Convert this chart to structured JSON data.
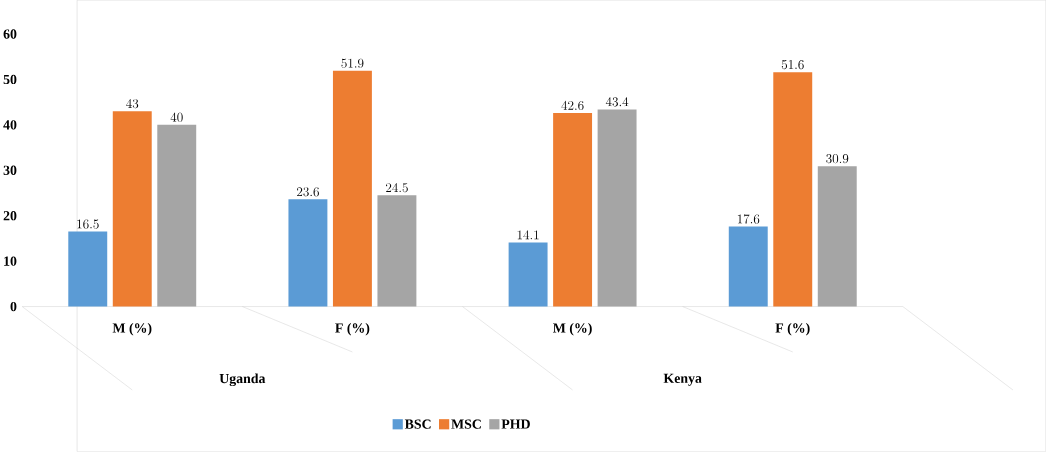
{
  "chart_data": {
    "type": "bar",
    "categories": [
      "M (%)",
      "F (%)",
      "M (%)",
      "F (%)"
    ],
    "series": [
      {
        "name": "BSC",
        "color": "#5b9bd5",
        "values": [
          16.5,
          23.6,
          14.1,
          17.6
        ]
      },
      {
        "name": "MSC",
        "color": "#ed7d31",
        "values": [
          43,
          51.9,
          42.6,
          51.6
        ]
      },
      {
        "name": "PHD",
        "color": "#a5a5a5",
        "values": [
          40,
          24.5,
          43.4,
          30.9
        ]
      }
    ],
    "annotations": [
      "Uganda",
      "Kenya"
    ],
    "ylim": [
      0,
      60
    ],
    "yticks": [
      0,
      10,
      20,
      30,
      40,
      50,
      60
    ],
    "data_labels": true,
    "grid": false,
    "legend": "bottom"
  }
}
